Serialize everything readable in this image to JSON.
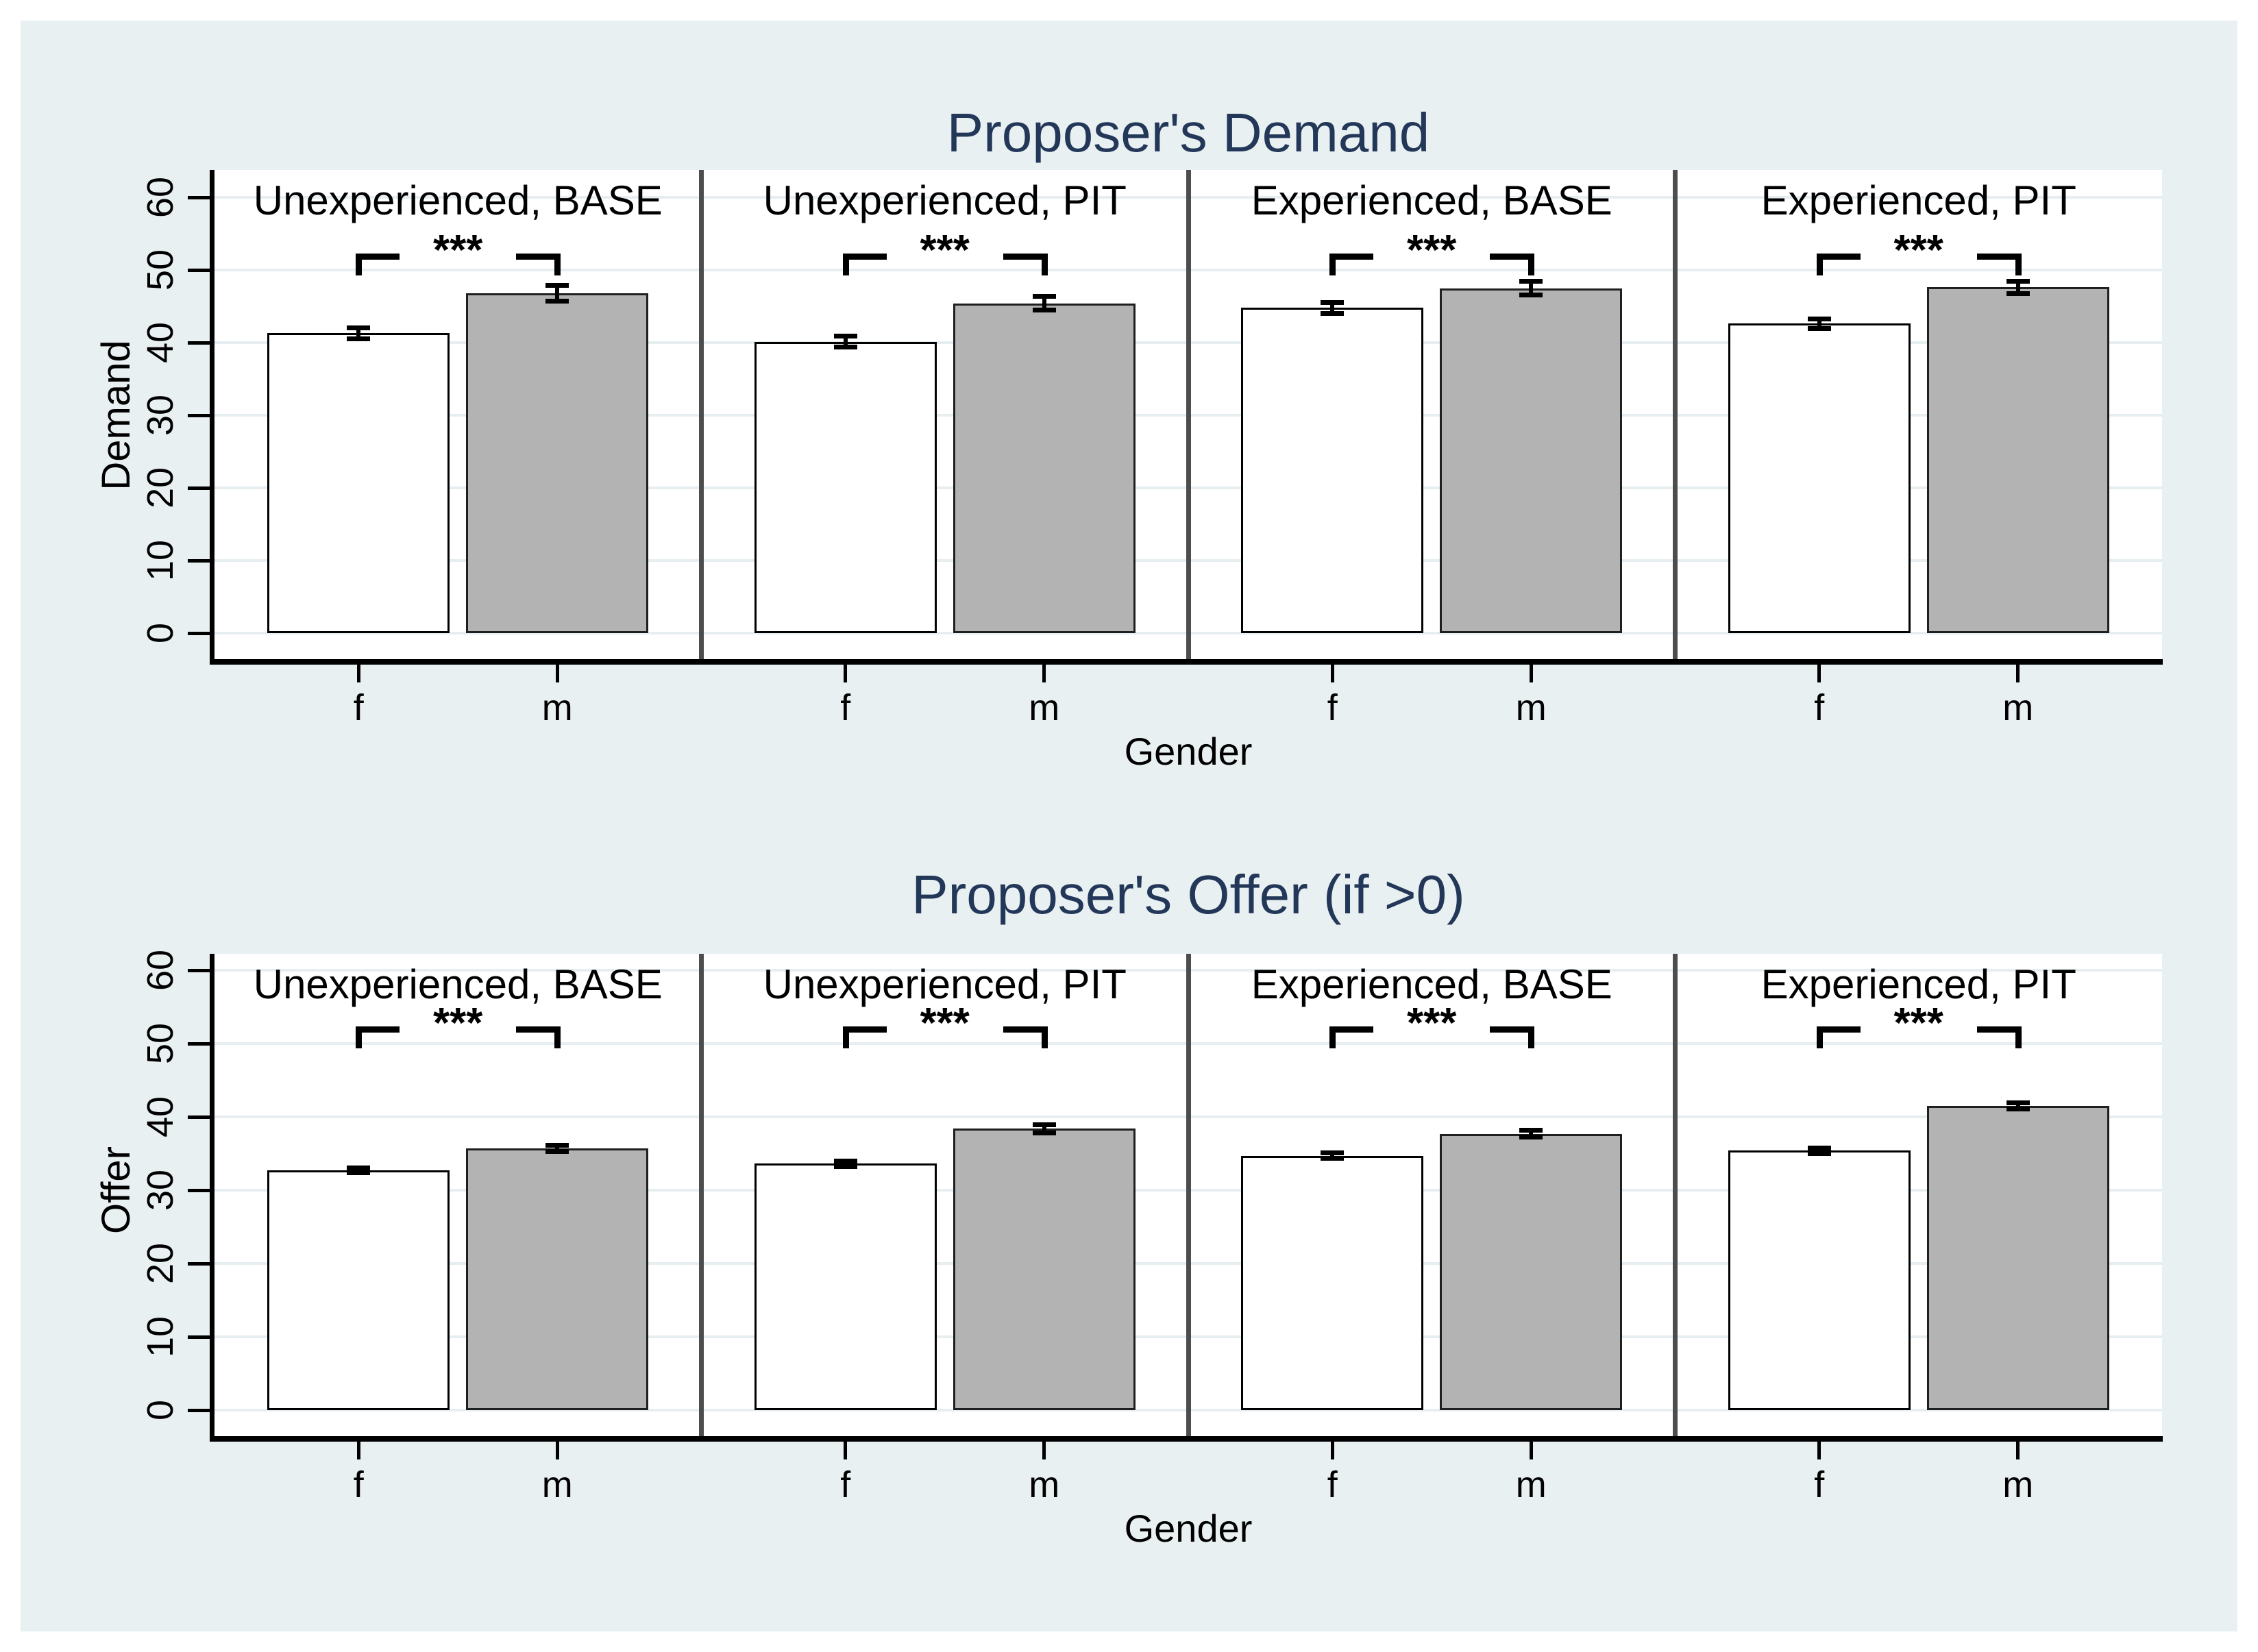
{
  "window": {
    "page_background": "#ffffff",
    "canvas_background": "#e9f0f2"
  },
  "colors": {
    "title_text": "#233759",
    "female_bar_fill": "#ffffff",
    "male_bar_fill": "#b3b3b3",
    "bar_outline": "#000000",
    "gridline": "#e7eef1",
    "panel_divider": "#4d4d4d",
    "axis_line": "#000000"
  },
  "chart_data": [
    {
      "type": "bar",
      "title": "Proposer's Demand",
      "xlabel": "Gender",
      "ylabel": "Demand",
      "ylim": [
        0,
        60
      ],
      "yticks": [
        0,
        10,
        20,
        30,
        40,
        50,
        60
      ],
      "categories": [
        "f",
        "m"
      ],
      "grid": true,
      "legend_position": "none",
      "error_bars": true,
      "panels": [
        {
          "label": "Unexperienced, BASE",
          "significance": "***",
          "bars": [
            {
              "category": "f",
              "value": 41.3,
              "se": 0.8
            },
            {
              "category": "m",
              "value": 46.8,
              "se": 1.1
            }
          ]
        },
        {
          "label": "Unexperienced, PIT",
          "significance": "***",
          "bars": [
            {
              "category": "f",
              "value": 40.1,
              "se": 0.8
            },
            {
              "category": "m",
              "value": 45.4,
              "se": 1.0
            }
          ]
        },
        {
          "label": "Experienced, BASE",
          "significance": "***",
          "bars": [
            {
              "category": "f",
              "value": 44.8,
              "se": 0.8
            },
            {
              "category": "m",
              "value": 47.5,
              "se": 1.0
            }
          ]
        },
        {
          "label": "Experienced, PIT",
          "significance": "***",
          "bars": [
            {
              "category": "f",
              "value": 42.6,
              "se": 0.7
            },
            {
              "category": "m",
              "value": 47.6,
              "se": 0.9
            }
          ]
        }
      ]
    },
    {
      "type": "bar",
      "title": "Proposer's Offer (if >0)",
      "xlabel": "Gender",
      "ylabel": "Offer",
      "ylim": [
        0,
        60
      ],
      "yticks": [
        0,
        10,
        20,
        30,
        40,
        50,
        60
      ],
      "categories": [
        "f",
        "m"
      ],
      "grid": true,
      "legend_position": "none",
      "error_bars": true,
      "panels": [
        {
          "label": "Unexperienced, BASE",
          "significance": "***",
          "bars": [
            {
              "category": "f",
              "value": 32.7,
              "se": 0.4
            },
            {
              "category": "m",
              "value": 35.7,
              "se": 0.5
            }
          ]
        },
        {
          "label": "Unexperienced, PIT",
          "significance": "***",
          "bars": [
            {
              "category": "f",
              "value": 33.6,
              "se": 0.4
            },
            {
              "category": "m",
              "value": 38.4,
              "se": 0.6
            }
          ]
        },
        {
          "label": "Experienced, BASE",
          "significance": "***",
          "bars": [
            {
              "category": "f",
              "value": 34.7,
              "se": 0.4
            },
            {
              "category": "m",
              "value": 37.7,
              "se": 0.5
            }
          ]
        },
        {
          "label": "Experienced, PIT",
          "significance": "***",
          "bars": [
            {
              "category": "f",
              "value": 35.4,
              "se": 0.4
            },
            {
              "category": "m",
              "value": 41.5,
              "se": 0.5
            }
          ]
        }
      ]
    }
  ]
}
